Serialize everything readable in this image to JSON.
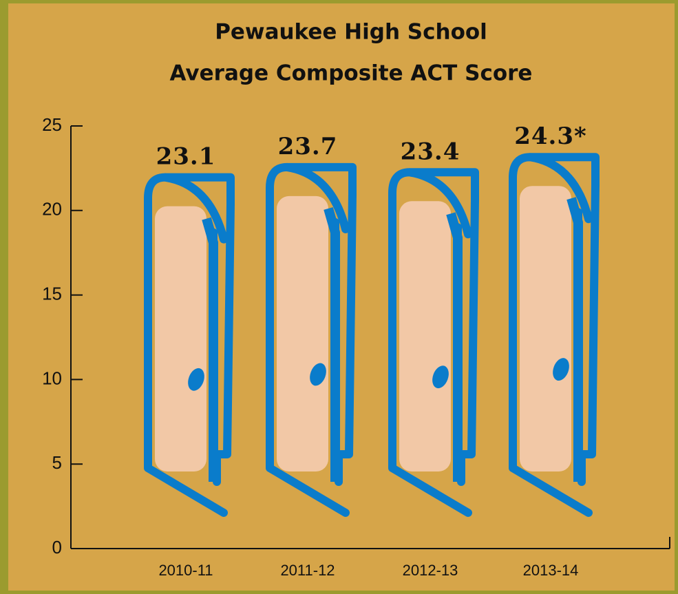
{
  "chart_data": {
    "type": "bar",
    "title": "Pewaukee High School",
    "subtitle": "Average Composite ACT Score",
    "categories": [
      "2010-11",
      "2011-12",
      "2012-13",
      "2013-14"
    ],
    "values": [
      23.1,
      23.7,
      23.4,
      24.3
    ],
    "value_labels": [
      "23.1",
      "23.7",
      "23.4",
      "24.3*"
    ],
    "color": "#0a7ccb",
    "ylim": [
      0,
      25
    ],
    "yticks": [
      0,
      5,
      10,
      15,
      20,
      25
    ]
  }
}
